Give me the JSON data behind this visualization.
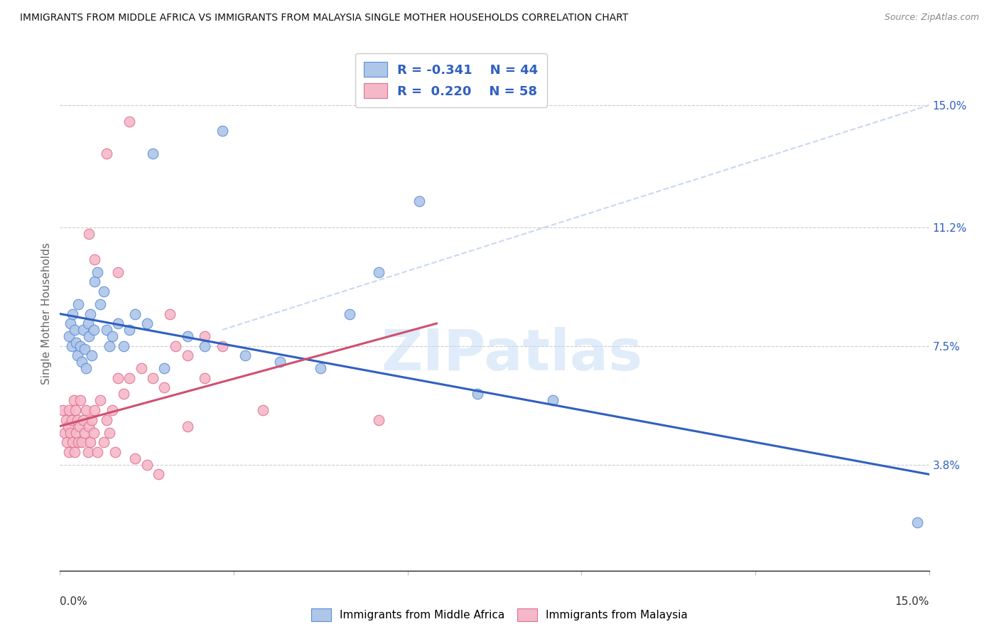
{
  "title": "IMMIGRANTS FROM MIDDLE AFRICA VS IMMIGRANTS FROM MALAYSIA SINGLE MOTHER HOUSEHOLDS CORRELATION CHART",
  "source": "Source: ZipAtlas.com",
  "ylabel": "Single Mother Households",
  "ytick_values": [
    3.8,
    7.5,
    11.2,
    15.0
  ],
  "xlim": [
    0.0,
    15.0
  ],
  "ylim": [
    0.5,
    16.5
  ],
  "legend_blue_r": "-0.341",
  "legend_blue_n": "44",
  "legend_pink_r": "0.220",
  "legend_pink_n": "58",
  "color_blue_fill": "#aec6e8",
  "color_pink_fill": "#f5b8c8",
  "color_blue_edge": "#5b8dd9",
  "color_pink_edge": "#e07090",
  "color_blue_line": "#3060c0",
  "color_pink_line": "#d05070",
  "color_dashed": "#c8d8f0",
  "watermark": "ZIPatlas",
  "blue_line_y0": 8.5,
  "blue_line_y1": 3.5,
  "pink_line_x0": 0.0,
  "pink_line_y0": 5.0,
  "pink_line_x1": 6.5,
  "pink_line_y1": 8.2,
  "dash_x0": 2.8,
  "dash_y0": 8.0,
  "dash_x1": 15.0,
  "dash_y1": 15.0,
  "blue_points_x": [
    0.15,
    0.18,
    0.2,
    0.22,
    0.25,
    0.28,
    0.3,
    0.32,
    0.35,
    0.38,
    0.4,
    0.42,
    0.45,
    0.48,
    0.5,
    0.52,
    0.55,
    0.58,
    0.6,
    0.65,
    0.7,
    0.75,
    0.8,
    0.85,
    0.9,
    1.0,
    1.1,
    1.2,
    1.3,
    1.5,
    1.8,
    2.2,
    2.5,
    3.2,
    3.8,
    4.5,
    5.5,
    6.2,
    7.2,
    8.5,
    1.6,
    2.8,
    5.0,
    14.8
  ],
  "blue_points_y": [
    7.8,
    8.2,
    7.5,
    8.5,
    8.0,
    7.6,
    7.2,
    8.8,
    7.5,
    7.0,
    8.0,
    7.4,
    6.8,
    8.2,
    7.8,
    8.5,
    7.2,
    8.0,
    9.5,
    9.8,
    8.8,
    9.2,
    8.0,
    7.5,
    7.8,
    8.2,
    7.5,
    8.0,
    8.5,
    8.2,
    6.8,
    7.8,
    7.5,
    7.2,
    7.0,
    6.8,
    9.8,
    12.0,
    6.0,
    5.8,
    13.5,
    14.2,
    8.5,
    2.0
  ],
  "pink_points_x": [
    0.05,
    0.08,
    0.1,
    0.12,
    0.14,
    0.15,
    0.16,
    0.18,
    0.2,
    0.22,
    0.24,
    0.25,
    0.26,
    0.28,
    0.3,
    0.32,
    0.34,
    0.35,
    0.38,
    0.4,
    0.42,
    0.45,
    0.48,
    0.5,
    0.52,
    0.55,
    0.58,
    0.6,
    0.65,
    0.7,
    0.75,
    0.8,
    0.85,
    0.9,
    0.95,
    1.0,
    1.1,
    1.2,
    1.4,
    1.6,
    1.8,
    2.0,
    2.2,
    2.5,
    2.8,
    1.3,
    1.5,
    1.7,
    2.2,
    1.0,
    0.5,
    0.6,
    0.8,
    1.2,
    1.9,
    2.5,
    3.5,
    5.5
  ],
  "pink_points_y": [
    5.5,
    4.8,
    5.2,
    4.5,
    5.0,
    4.2,
    5.5,
    4.8,
    5.2,
    4.5,
    5.8,
    4.2,
    5.5,
    4.8,
    5.2,
    4.5,
    5.0,
    5.8,
    4.5,
    5.2,
    4.8,
    5.5,
    4.2,
    5.0,
    4.5,
    5.2,
    4.8,
    5.5,
    4.2,
    5.8,
    4.5,
    5.2,
    4.8,
    5.5,
    4.2,
    6.5,
    6.0,
    6.5,
    6.8,
    6.5,
    6.2,
    7.5,
    7.2,
    7.8,
    7.5,
    4.0,
    3.8,
    3.5,
    5.0,
    9.8,
    11.0,
    10.2,
    13.5,
    14.5,
    8.5,
    6.5,
    5.5,
    5.2
  ]
}
